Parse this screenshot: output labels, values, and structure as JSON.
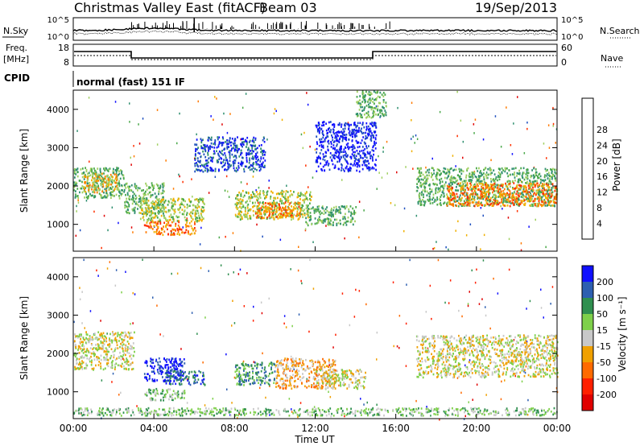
{
  "header": {
    "station": "Christmas Valley East (fitACF)",
    "beam": "Beam 03",
    "date": "19/Sep/2013"
  },
  "params": {
    "nsky_label": "N.Sky",
    "nsearch_label": "N.Search",
    "freq_label_line1": "Freq.",
    "freq_label_line2": "[MHz]",
    "nave_label": "Nave",
    "cpid_label": "CPID",
    "cpid_text": "normal (fast) 151 IF",
    "nsky_ticks": [
      "10^5",
      "10^0"
    ],
    "nsearch_ticks": [
      "10^5",
      "10^0"
    ],
    "freq_ticks": [
      "18",
      "8"
    ],
    "nave_ticks": [
      "60",
      "0"
    ]
  },
  "chart_data": [
    {
      "type": "heatmap",
      "name": "power-panel",
      "ylabel": "Slant Range [km]",
      "yticks": [
        1000,
        2000,
        3000,
        4000
      ],
      "ylim": [
        300,
        4500
      ],
      "colorbar": {
        "label": "Power [dB]",
        "ticks": [
          "4",
          "8",
          "12",
          "16",
          "20",
          "24",
          "28"
        ],
        "colors": [
          "#1010ff",
          "#1f4fbf",
          "#2f8f6f",
          "#4aa84a",
          "#a0d060",
          "#f0b000",
          "#ff7a00",
          "#ff3000",
          "#e00000"
        ]
      },
      "blobs": [
        {
          "t": [
            0.0,
            2.5
          ],
          "r": [
            1700,
            2500
          ],
          "c": 3
        },
        {
          "t": [
            0.5,
            2.2
          ],
          "r": [
            1850,
            2350
          ],
          "c": 5
        },
        {
          "t": [
            2.5,
            4.5
          ],
          "r": [
            1300,
            2100
          ],
          "c": 3
        },
        {
          "t": [
            3.3,
            6.5
          ],
          "r": [
            1100,
            1700
          ],
          "c": 4
        },
        {
          "t": [
            3.5,
            6.0
          ],
          "r": [
            750,
            1100
          ],
          "c": 6
        },
        {
          "t": [
            8.0,
            11.8
          ],
          "r": [
            1150,
            1900
          ],
          "c": 4
        },
        {
          "t": [
            9.0,
            11.3
          ],
          "r": [
            1200,
            1600
          ],
          "c": 6
        },
        {
          "t": [
            11.5,
            14.0
          ],
          "r": [
            1000,
            1500
          ],
          "c": 3
        },
        {
          "t": [
            17.0,
            24.0
          ],
          "r": [
            1500,
            2500
          ],
          "c": 3
        },
        {
          "t": [
            18.5,
            24.0
          ],
          "r": [
            1500,
            2100
          ],
          "c": 6
        },
        {
          "t": [
            6.0,
            9.5
          ],
          "r": [
            2400,
            3300
          ],
          "c": 1
        },
        {
          "t": [
            12.0,
            15.0
          ],
          "r": [
            2400,
            3700
          ],
          "c": 0
        },
        {
          "t": [
            14.0,
            15.5
          ],
          "r": [
            3800,
            4500
          ],
          "c": 3
        }
      ]
    },
    {
      "type": "heatmap",
      "name": "velocity-panel",
      "ylabel": "Slant Range [km]",
      "xlabel": "Time UT",
      "yticks": [
        1000,
        2000,
        3000,
        4000
      ],
      "ylim": [
        300,
        4500
      ],
      "xlim": [
        0,
        24
      ],
      "xticks": [
        "00:00",
        "04:00",
        "08:00",
        "12:00",
        "16:00",
        "20:00",
        "00:00"
      ],
      "colorbar": {
        "label": "Velocity [m s⁻¹]",
        "ticks": [
          "200",
          "100",
          "50",
          "15",
          "-15",
          "-50",
          "-100",
          "-200"
        ],
        "colors": [
          "#1010ff",
          "#2d5fb0",
          "#2f8f4f",
          "#7ed04a",
          "#c8c8c8",
          "#f0a000",
          "#ff6a00",
          "#ff2000",
          "#e00000"
        ]
      },
      "blobs": [
        {
          "t": [
            0.0,
            3.0
          ],
          "r": [
            1600,
            2600
          ],
          "c": 4
        },
        {
          "t": [
            3.5,
            5.5
          ],
          "r": [
            1300,
            1900
          ],
          "c": 0
        },
        {
          "t": [
            4.5,
            6.5
          ],
          "r": [
            1200,
            1600
          ],
          "c": 1
        },
        {
          "t": [
            3.5,
            5.5
          ],
          "r": [
            800,
            1100
          ],
          "c": 3
        },
        {
          "t": [
            8.0,
            10.0
          ],
          "r": [
            1200,
            1800
          ],
          "c": 2
        },
        {
          "t": [
            10.0,
            13.0
          ],
          "r": [
            1100,
            1900
          ],
          "c": 5
        },
        {
          "t": [
            12.0,
            14.5
          ],
          "r": [
            1100,
            1600
          ],
          "c": 4
        },
        {
          "t": [
            17.0,
            24.0
          ],
          "r": [
            1400,
            2500
          ],
          "c": 4
        },
        {
          "t": [
            0.0,
            24.0
          ],
          "r": [
            400,
            600
          ],
          "c": 3
        }
      ]
    }
  ]
}
